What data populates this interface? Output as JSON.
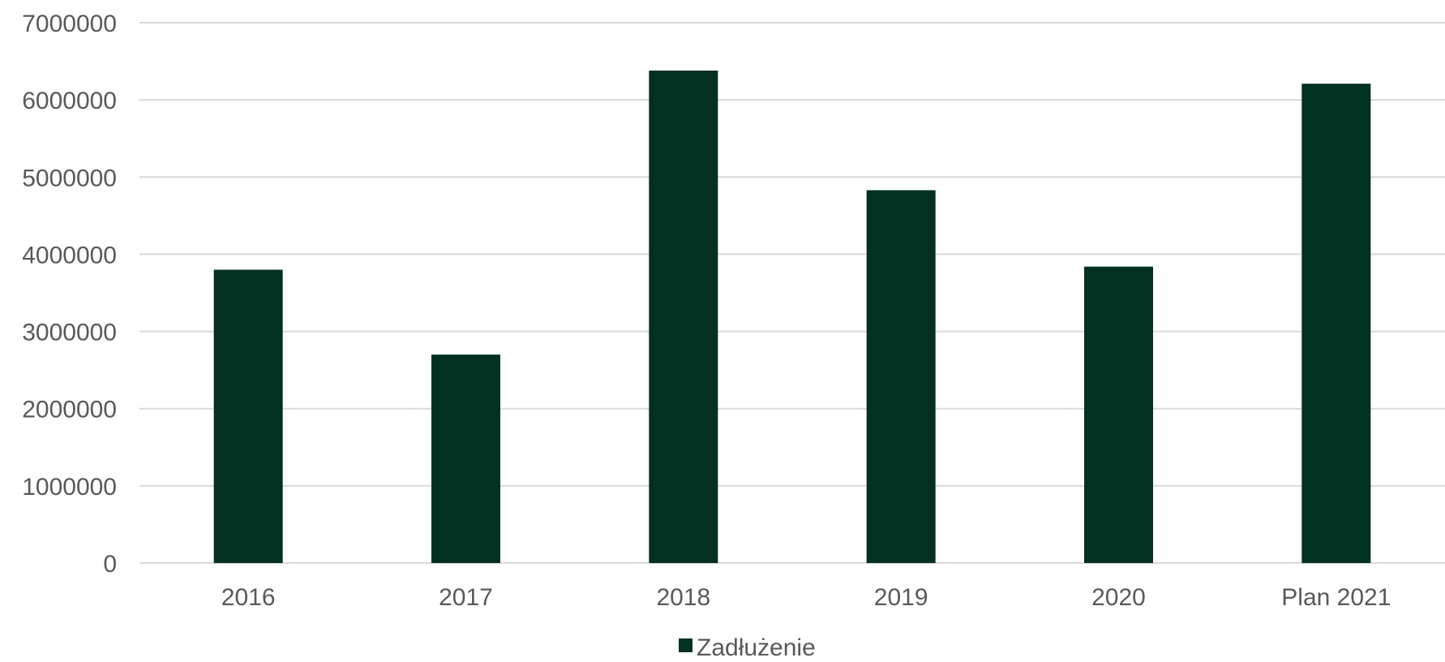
{
  "chart_data": {
    "type": "bar",
    "categories": [
      "2016",
      "2017",
      "2018",
      "2019",
      "2020",
      "Plan 2021"
    ],
    "series": [
      {
        "name": "Zadłużenie",
        "values": [
          3800000,
          2700000,
          6380000,
          4830000,
          3840000,
          6210000
        ],
        "color": "#033121"
      }
    ],
    "ylim": [
      0,
      7000000
    ],
    "yticks": [
      0,
      1000000,
      2000000,
      3000000,
      4000000,
      5000000,
      6000000,
      7000000
    ],
    "ytick_labels": [
      "0",
      "1000000",
      "2000000",
      "3000000",
      "4000000",
      "5000000",
      "6000000",
      "7000000"
    ],
    "grid": true,
    "grid_color": "#d9d9d9",
    "legend": {
      "position": "bottom",
      "entries": [
        "Zadłużenie"
      ]
    },
    "title": "",
    "xlabel": "",
    "ylabel": ""
  }
}
